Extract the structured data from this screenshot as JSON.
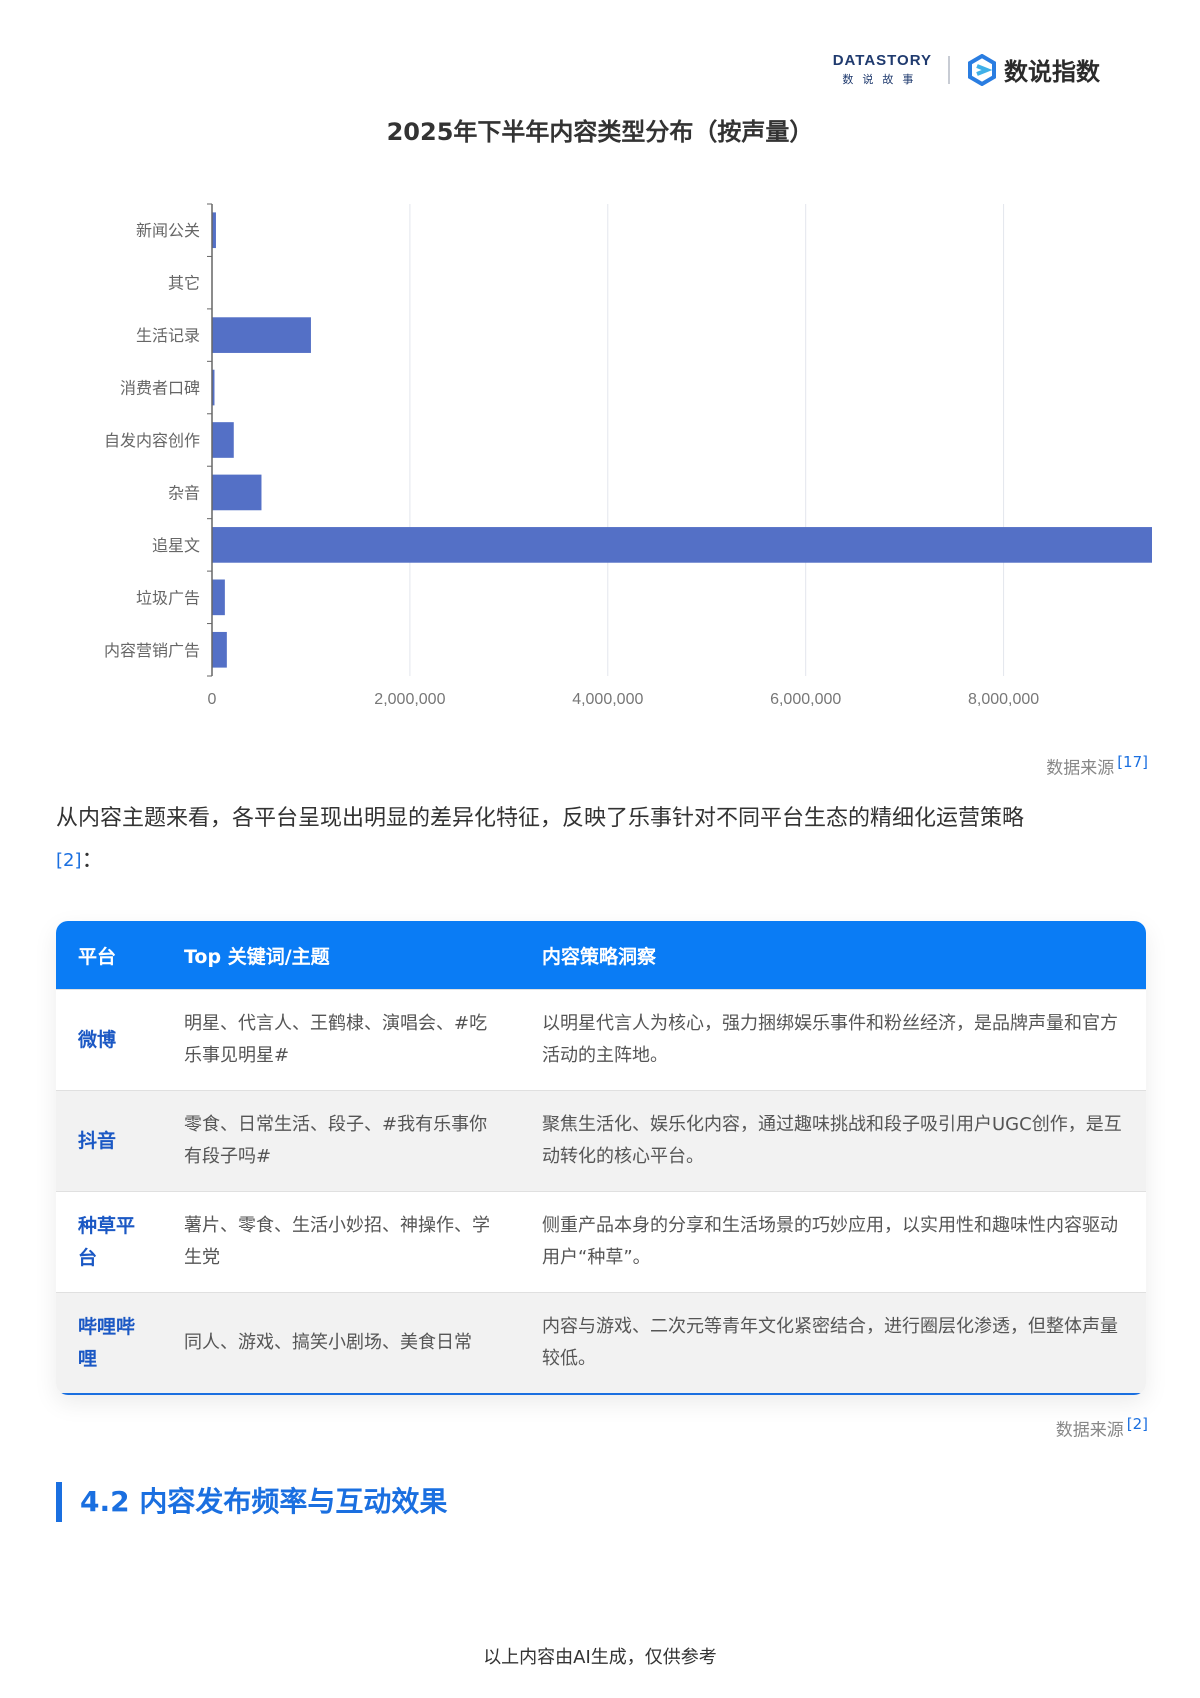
{
  "header": {
    "logo1_main": "DATASTORY",
    "logo1_sub": "数说故事",
    "logo2_name": "数说指数"
  },
  "chart_data": {
    "type": "bar",
    "orientation": "horizontal",
    "title": "2025年下半年内容类型分布（按声量）",
    "categories": [
      "新闻公关",
      "其它",
      "生活记录",
      "消费者口碑",
      "自发内容创作",
      "杂音",
      "追星文",
      "垃圾广告",
      "内容营销广告"
    ],
    "values": [
      40000,
      5000,
      1000000,
      25000,
      220000,
      500000,
      9500000,
      130000,
      150000
    ],
    "xlim": [
      0,
      9500000
    ],
    "xticks": [
      0,
      2000000,
      4000000,
      6000000,
      8000000
    ],
    "xtick_labels": [
      "0",
      "2,000,000",
      "4,000,000",
      "6,000,000",
      "8,000,000"
    ],
    "bar_color": "#5470c6",
    "grid": true
  },
  "chart_source": {
    "label": "数据来源",
    "ref": "[17]"
  },
  "intro": {
    "text": "从内容主题来看，各平台呈现出明显的差异化特征，反映了乐事针对不同平台生态的精细化运营策略",
    "ref": "[2]",
    "tail": "："
  },
  "table": {
    "headers": [
      "平台",
      "Top 关键词/主题",
      "内容策略洞察"
    ],
    "rows": [
      {
        "platform": "微博",
        "keywords": "明星、代言人、王鹤棣、演唱会、#吃乐事见明星#",
        "insight": "以明星代言人为核心，强力捆绑娱乐事件和粉丝经济，是品牌声量和官方活动的主阵地。"
      },
      {
        "platform": "抖音",
        "keywords": "零食、日常生活、段子、#我有乐事你有段子吗#",
        "insight": "聚焦生活化、娱乐化内容，通过趣味挑战和段子吸引用户UGC创作，是互动转化的核心平台。"
      },
      {
        "platform": "种草平台",
        "keywords": "薯片、零食、生活小妙招、神操作、学生党",
        "insight": "侧重产品本身的分享和生活场景的巧妙应用，以实用性和趣味性内容驱动用户“种草”。"
      },
      {
        "platform": "哔哩哔哩",
        "keywords": "同人、游戏、搞笑小剧场、美食日常",
        "insight": "内容与游戏、二次元等青年文化紧密结合，进行圈层化渗透，但整体声量较低。"
      }
    ]
  },
  "table_source": {
    "label": "数据来源",
    "ref": "[2]"
  },
  "section_title": "4.2 内容发布频率与互动效果",
  "footer": "以上内容由AI生成，仅供参考",
  "colors": {
    "accent": "#1a6fe0",
    "table_header": "#0a7cf5",
    "platform_text": "#1b58c4"
  }
}
